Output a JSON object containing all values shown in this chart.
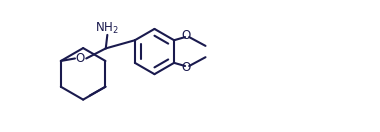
{
  "line_color": "#1a1a4e",
  "bg_color": "#ffffff",
  "lw": 1.5,
  "fig_width": 3.8,
  "fig_height": 1.32,
  "dpi": 100,
  "xlim": [
    0,
    11
  ],
  "ylim": [
    0,
    4.2
  ],
  "nh2": "NH$_2$",
  "o_ether": "O",
  "o_top": "O",
  "o_bot": "O"
}
